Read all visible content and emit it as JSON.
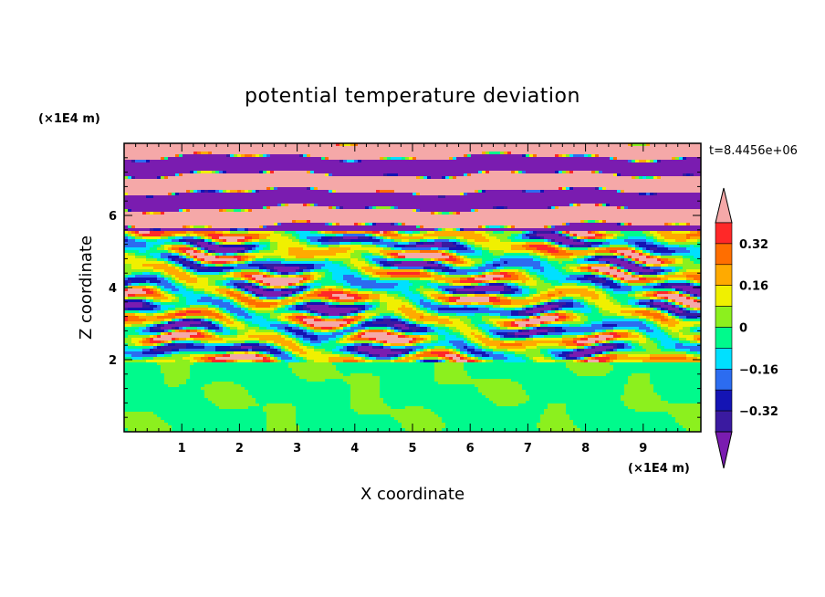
{
  "chart_data": {
    "type": "heatmap",
    "title": "potential temperature deviation",
    "xlabel": "X coordinate",
    "ylabel": "Z coordinate",
    "x_unit": "(×1E4 m)",
    "z_unit": "(×1E4 m)",
    "time_label": "t=8.4456e+06",
    "xlim": [
      0,
      10
    ],
    "ylim": [
      0,
      8
    ],
    "x_ticks": [
      1,
      2,
      3,
      4,
      5,
      6,
      7,
      8,
      9
    ],
    "y_ticks": [
      2,
      4,
      6
    ],
    "colorbar": {
      "levels": [
        -0.4,
        -0.32,
        -0.24,
        -0.16,
        -0.08,
        0,
        0.08,
        0.16,
        0.24,
        0.32,
        0.4
      ],
      "labeled_levels": [
        0.32,
        0.16,
        0,
        -0.16,
        -0.32
      ],
      "label_texts": [
        "0.32",
        "0.16",
        "0",
        "−0.16",
        "−0.32"
      ],
      "colors": [
        "#7a1cb0",
        "#3a1aa0",
        "#1414b4",
        "#2c6cf0",
        "#00e0ff",
        "#00fa8c",
        "#8cf01e",
        "#f0f000",
        "#ffaa00",
        "#ff6e00",
        "#ff2828",
        "#f5a8a8"
      ],
      "extend": "both"
    }
  }
}
